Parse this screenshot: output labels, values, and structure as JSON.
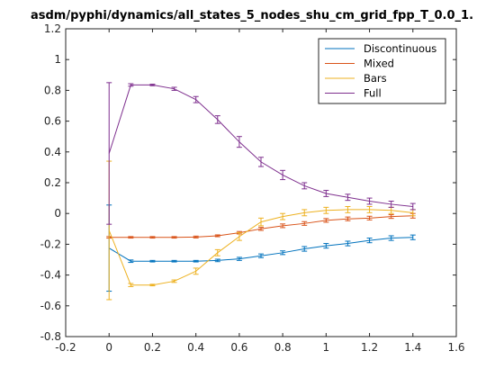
{
  "chart_data": {
    "type": "line",
    "title": "asdm/pyphi/dynamics/all_states_5_nodes_shu_cm_grid_fpp_T_0.0_1.",
    "xlabel": "",
    "ylabel": "",
    "xlim": [
      -0.2,
      1.6
    ],
    "ylim": [
      -0.8,
      1.2
    ],
    "xticks": [
      -0.2,
      0,
      0.2,
      0.4,
      0.6,
      0.8,
      1,
      1.2,
      1.4,
      1.6
    ],
    "xtick_labels": [
      "-0.2",
      "0",
      "0.2",
      "0.4",
      "0.6",
      "0.8",
      "1",
      "1.2",
      "1.4",
      "1.6"
    ],
    "yticks": [
      -0.8,
      -0.6,
      -0.4,
      -0.2,
      0,
      0.2,
      0.4,
      0.6,
      0.8,
      1,
      1.2
    ],
    "ytick_labels": [
      "-0.8",
      "-0.6",
      "-0.4",
      "-0.2",
      "0",
      "0.2",
      "0.4",
      "0.6",
      "0.8",
      "1",
      "1.2"
    ],
    "grid": false,
    "legend_position": "top-right",
    "x": [
      0,
      0.1,
      0.2,
      0.3,
      0.4,
      0.5,
      0.6,
      0.7,
      0.8,
      0.9,
      1.0,
      1.1,
      1.2,
      1.3,
      1.4
    ],
    "series": [
      {
        "name": "Discontinuous",
        "color": "#0072bd",
        "values": [
          -0.225,
          -0.31,
          -0.31,
          -0.31,
          -0.31,
          -0.305,
          -0.295,
          -0.275,
          -0.255,
          -0.23,
          -0.21,
          -0.195,
          -0.175,
          -0.16,
          -0.155
        ],
        "errors": [
          0.28,
          0.008,
          0.005,
          0.005,
          0.005,
          0.008,
          0.01,
          0.012,
          0.012,
          0.015,
          0.015,
          0.015,
          0.015,
          0.015,
          0.015
        ]
      },
      {
        "name": "Mixed",
        "color": "#d95319",
        "values": [
          -0.155,
          -0.155,
          -0.155,
          -0.155,
          -0.153,
          -0.145,
          -0.125,
          -0.1,
          -0.08,
          -0.065,
          -0.045,
          -0.035,
          -0.03,
          -0.02,
          -0.015
        ],
        "errors": [
          0.005,
          0.005,
          0.005,
          0.005,
          0.006,
          0.006,
          0.008,
          0.01,
          0.012,
          0.012,
          0.012,
          0.012,
          0.012,
          0.012,
          0.015
        ]
      },
      {
        "name": "Bars",
        "color": "#edb120",
        "values": [
          -0.11,
          -0.465,
          -0.465,
          -0.44,
          -0.375,
          -0.255,
          -0.15,
          -0.055,
          -0.02,
          0.005,
          0.02,
          0.025,
          0.025,
          0.02,
          0.005
        ],
        "errors": [
          0.45,
          0.01,
          0.005,
          0.008,
          0.02,
          0.02,
          0.025,
          0.025,
          0.02,
          0.02,
          0.02,
          0.02,
          0.02,
          0.02,
          0.02
        ]
      },
      {
        "name": "Full",
        "color": "#7e2f8e",
        "values": [
          0.39,
          0.835,
          0.835,
          0.81,
          0.74,
          0.61,
          0.465,
          0.335,
          0.25,
          0.18,
          0.13,
          0.105,
          0.08,
          0.06,
          0.045
        ],
        "errors": [
          0.46,
          0.008,
          0.005,
          0.01,
          0.02,
          0.025,
          0.035,
          0.03,
          0.03,
          0.02,
          0.02,
          0.02,
          0.02,
          0.02,
          0.02
        ]
      }
    ]
  }
}
